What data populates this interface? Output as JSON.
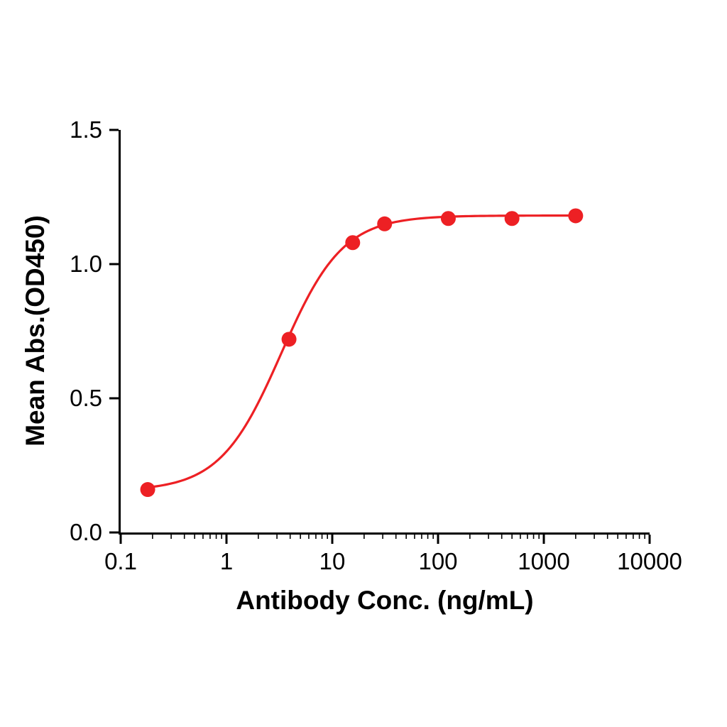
{
  "page": {
    "background_color": "#ffffff",
    "description": "ELISA antibody binding dose-response curve"
  },
  "chart_data": {
    "type": "scatter",
    "title": "",
    "xlabel": "Antibody Conc. (ng/mL)",
    "ylabel": "Mean Abs.(OD450)",
    "x_scale": "log10",
    "xlim": [
      0.1,
      10000
    ],
    "ylim": [
      0.0,
      1.5
    ],
    "grid": false,
    "legend": null,
    "x_ticks": [
      {
        "value": 0.1,
        "label": "0.1"
      },
      {
        "value": 1,
        "label": "1"
      },
      {
        "value": 10,
        "label": "10"
      },
      {
        "value": 100,
        "label": "100"
      },
      {
        "value": 1000,
        "label": "1000"
      },
      {
        "value": 10000,
        "label": "10000"
      }
    ],
    "y_ticks": [
      {
        "value": 0.0,
        "label": "0.0"
      },
      {
        "value": 0.5,
        "label": "0.5"
      },
      {
        "value": 1.0,
        "label": "1.0"
      },
      {
        "value": 1.5,
        "label": "1.5"
      }
    ],
    "points": [
      {
        "x": 0.18,
        "y": 0.16
      },
      {
        "x": 3.9,
        "y": 0.72
      },
      {
        "x": 15.6,
        "y": 1.08
      },
      {
        "x": 31.25,
        "y": 1.15
      },
      {
        "x": 125,
        "y": 1.17
      },
      {
        "x": 500,
        "y": 1.17
      },
      {
        "x": 2000,
        "y": 1.18
      }
    ],
    "fit": {
      "model": "4PL",
      "bottom": 0.155,
      "top": 1.181,
      "ec50": 3.3,
      "hill": 1.5
    },
    "point_color": "#ED2024",
    "line_color": "#ED2024",
    "axis_color": "#000000"
  }
}
